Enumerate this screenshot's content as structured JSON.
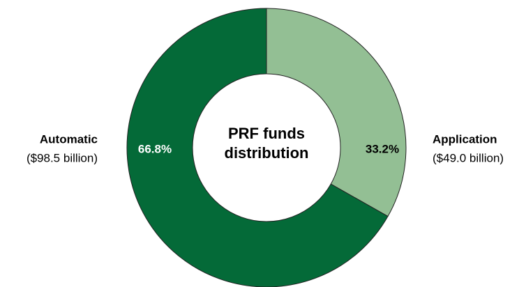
{
  "chart_data": {
    "type": "donut",
    "title": "PRF funds distribution",
    "categories": [
      "Application",
      "Automatic"
    ],
    "amount_labels": [
      "($49.0 billion)",
      "($98.5 billion)"
    ],
    "values": [
      33.2,
      66.8
    ],
    "value_labels": [
      "33.2%",
      "66.8%"
    ],
    "colors": [
      "#93bf94",
      "#046a38"
    ]
  }
}
